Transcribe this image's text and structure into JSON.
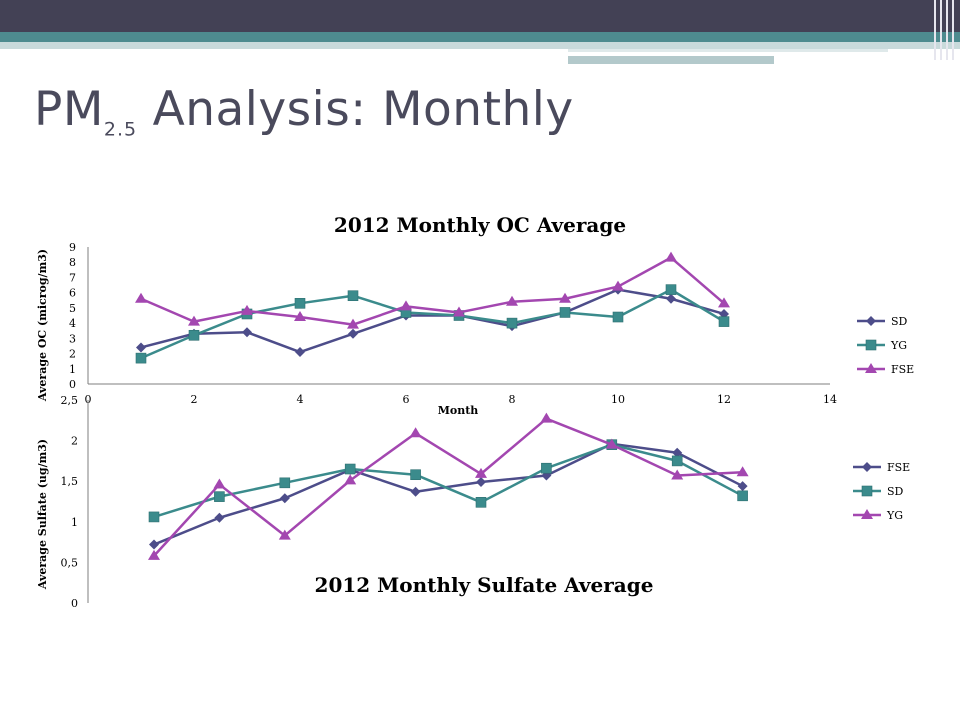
{
  "slide": {
    "title_main": "PM",
    "title_sub": "2.5",
    "title_rest": " Analysis: Monthly"
  },
  "colors": {
    "navy": "#4d4d8a",
    "teal": "#3b8b8c",
    "magenta": "#a347b0"
  },
  "chart_data": [
    {
      "type": "line",
      "title": "2012 Monthly OC Average",
      "xlabel": "Month",
      "ylabel": "Average OC (microg/m3)",
      "xlim": [
        0,
        14
      ],
      "ylim": [
        0,
        9
      ],
      "xticks": [
        0,
        2,
        4,
        6,
        8,
        10,
        12,
        14
      ],
      "yticks": [
        0,
        1,
        2,
        3,
        4,
        5,
        6,
        7,
        8,
        9
      ],
      "legend_position": "right",
      "series": [
        {
          "name": "SD",
          "color": "#4d4d8a",
          "marker": "diamond",
          "x": [
            1,
            2,
            3,
            4,
            5,
            6,
            7,
            8,
            9,
            10,
            11,
            12
          ],
          "y": [
            2.4,
            3.3,
            3.4,
            2.1,
            3.3,
            4.5,
            4.5,
            3.8,
            4.7,
            6.2,
            5.6,
            4.6
          ]
        },
        {
          "name": "YG",
          "color": "#3b8b8c",
          "marker": "square",
          "x": [
            1,
            2,
            3,
            4,
            5,
            6,
            7,
            8,
            9,
            10,
            11,
            12
          ],
          "y": [
            1.7,
            3.2,
            4.6,
            5.3,
            5.8,
            4.7,
            4.5,
            4.0,
            4.7,
            4.4,
            6.2,
            4.1
          ]
        },
        {
          "name": "FSE",
          "color": "#a347b0",
          "marker": "triangle",
          "x": [
            1,
            2,
            3,
            4,
            5,
            6,
            7,
            8,
            9,
            10,
            11,
            12
          ],
          "y": [
            5.6,
            4.1,
            4.8,
            4.4,
            3.9,
            5.1,
            4.7,
            5.4,
            5.6,
            6.4,
            8.3,
            5.3
          ]
        }
      ]
    },
    {
      "type": "line",
      "title": "2012 Monthly Sulfate Average",
      "xlabel": "",
      "ylabel": "Average Sulfate (ug/m3)",
      "ylim": [
        0,
        2.5
      ],
      "yticks": [
        "0",
        "0,5",
        "1",
        "1,5",
        "2",
        "2,5"
      ],
      "legend_position": "right",
      "series": [
        {
          "name": "FSE",
          "color": "#4d4d8a",
          "marker": "diamond",
          "x": [
            1,
            2,
            3,
            4,
            5,
            6,
            7,
            8,
            9,
            10
          ],
          "y": [
            0.72,
            1.05,
            1.29,
            1.64,
            1.37,
            1.49,
            1.57,
            1.96,
            1.85,
            1.44
          ]
        },
        {
          "name": "SD",
          "color": "#3b8b8c",
          "marker": "square",
          "x": [
            1,
            2,
            3,
            4,
            5,
            6,
            7,
            8,
            9,
            10
          ],
          "y": [
            1.06,
            1.31,
            1.48,
            1.65,
            1.58,
            1.24,
            1.66,
            1.95,
            1.75,
            1.32
          ]
        },
        {
          "name": "YG",
          "color": "#a347b0",
          "marker": "triangle",
          "x": [
            1,
            2,
            3,
            4,
            5,
            6,
            7,
            8,
            9,
            10
          ],
          "y": [
            0.58,
            1.46,
            0.83,
            1.51,
            2.09,
            1.59,
            2.27,
            1.95,
            1.57,
            1.61
          ]
        }
      ]
    }
  ]
}
